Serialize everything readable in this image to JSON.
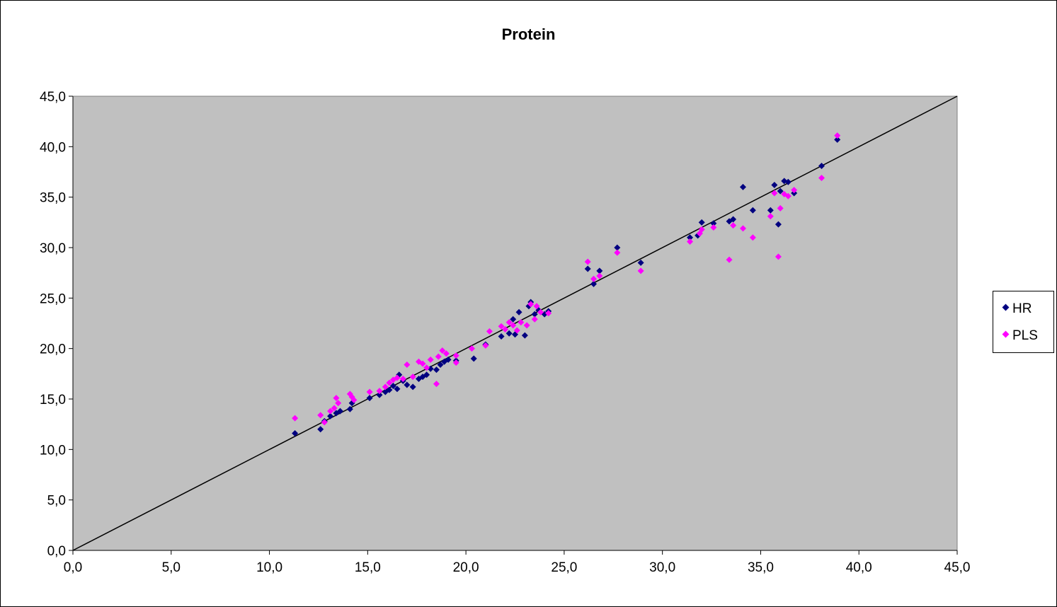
{
  "chart_data": {
    "type": "scatter",
    "title": "Protein",
    "xlabel": "",
    "ylabel": "",
    "xlim": [
      0,
      45
    ],
    "ylim": [
      0,
      45
    ],
    "x_ticks": [
      "0,0",
      "5,0",
      "10,0",
      "15,0",
      "20,0",
      "25,0",
      "30,0",
      "35,0",
      "40,0",
      "45,0"
    ],
    "y_ticks": [
      "0,0",
      "5,0",
      "10,0",
      "15,0",
      "20,0",
      "25,0",
      "30,0",
      "35,0",
      "40,0",
      "45,0"
    ],
    "tick_values": [
      0,
      5,
      10,
      15,
      20,
      25,
      30,
      35,
      40,
      45
    ],
    "plot_background": "#c0c0c0",
    "grid": false,
    "legend_position": "right",
    "reference_line": {
      "from": [
        0,
        0
      ],
      "to": [
        45,
        45
      ],
      "color": "#000000"
    },
    "series": [
      {
        "name": "HR",
        "color": "#000080",
        "marker": "diamond",
        "points": [
          [
            11.3,
            11.6
          ],
          [
            12.6,
            12.0
          ],
          [
            12.8,
            12.8
          ],
          [
            13.1,
            13.3
          ],
          [
            13.4,
            13.6
          ],
          [
            13.6,
            13.8
          ],
          [
            14.1,
            14.0
          ],
          [
            14.2,
            14.6
          ],
          [
            15.1,
            15.1
          ],
          [
            15.6,
            15.4
          ],
          [
            15.9,
            15.7
          ],
          [
            16.1,
            15.9
          ],
          [
            16.3,
            16.3
          ],
          [
            16.5,
            16.0
          ],
          [
            16.6,
            17.4
          ],
          [
            16.8,
            16.8
          ],
          [
            17.0,
            16.4
          ],
          [
            17.3,
            16.2
          ],
          [
            17.6,
            17.0
          ],
          [
            17.8,
            17.2
          ],
          [
            18.0,
            17.4
          ],
          [
            18.2,
            18.0
          ],
          [
            18.5,
            17.9
          ],
          [
            18.7,
            18.4
          ],
          [
            18.9,
            18.7
          ],
          [
            19.1,
            18.9
          ],
          [
            19.5,
            18.8
          ],
          [
            20.4,
            19.0
          ],
          [
            21.0,
            20.4
          ],
          [
            21.8,
            21.2
          ],
          [
            22.2,
            21.5
          ],
          [
            22.4,
            22.9
          ],
          [
            22.5,
            21.4
          ],
          [
            22.7,
            23.6
          ],
          [
            23.0,
            21.3
          ],
          [
            23.2,
            24.2
          ],
          [
            23.3,
            24.6
          ],
          [
            23.5,
            23.4
          ],
          [
            23.7,
            23.8
          ],
          [
            24.0,
            23.4
          ],
          [
            24.2,
            23.7
          ],
          [
            26.2,
            27.9
          ],
          [
            26.5,
            26.4
          ],
          [
            26.8,
            27.7
          ],
          [
            27.7,
            30.0
          ],
          [
            28.9,
            28.5
          ],
          [
            31.4,
            31.0
          ],
          [
            31.8,
            31.2
          ],
          [
            32.0,
            32.5
          ],
          [
            32.6,
            32.4
          ],
          [
            33.4,
            32.6
          ],
          [
            33.6,
            32.8
          ],
          [
            34.1,
            36.0
          ],
          [
            34.6,
            33.7
          ],
          [
            35.5,
            33.7
          ],
          [
            35.7,
            36.2
          ],
          [
            35.9,
            32.3
          ],
          [
            36.0,
            35.6
          ],
          [
            36.2,
            36.6
          ],
          [
            36.4,
            36.5
          ],
          [
            36.7,
            35.4
          ],
          [
            38.1,
            38.1
          ],
          [
            38.9,
            40.7
          ]
        ]
      },
      {
        "name": "PLS",
        "color": "#ff00ff",
        "marker": "diamond",
        "points": [
          [
            11.3,
            13.1
          ],
          [
            12.6,
            13.4
          ],
          [
            12.8,
            12.7
          ],
          [
            13.1,
            13.8
          ],
          [
            13.3,
            14.1
          ],
          [
            13.4,
            15.1
          ],
          [
            13.5,
            14.6
          ],
          [
            14.1,
            15.5
          ],
          [
            14.2,
            15.2
          ],
          [
            14.3,
            14.9
          ],
          [
            15.1,
            15.7
          ],
          [
            15.6,
            15.8
          ],
          [
            15.9,
            16.2
          ],
          [
            16.1,
            16.6
          ],
          [
            16.3,
            16.9
          ],
          [
            16.5,
            17.1
          ],
          [
            16.8,
            17.0
          ],
          [
            17.0,
            18.4
          ],
          [
            17.3,
            17.2
          ],
          [
            17.6,
            18.7
          ],
          [
            17.8,
            18.5
          ],
          [
            18.0,
            18.1
          ],
          [
            18.2,
            18.9
          ],
          [
            18.5,
            16.5
          ],
          [
            18.6,
            19.2
          ],
          [
            18.8,
            19.8
          ],
          [
            19.0,
            19.5
          ],
          [
            19.5,
            18.6
          ],
          [
            19.5,
            19.3
          ],
          [
            20.3,
            20.0
          ],
          [
            21.0,
            20.3
          ],
          [
            21.2,
            21.7
          ],
          [
            21.8,
            22.2
          ],
          [
            22.0,
            21.9
          ],
          [
            22.2,
            22.6
          ],
          [
            22.4,
            22.3
          ],
          [
            22.6,
            21.8
          ],
          [
            22.8,
            22.6
          ],
          [
            23.1,
            22.3
          ],
          [
            23.3,
            24.4
          ],
          [
            23.5,
            22.9
          ],
          [
            23.6,
            24.2
          ],
          [
            23.8,
            23.6
          ],
          [
            24.2,
            23.5
          ],
          [
            26.2,
            28.6
          ],
          [
            26.5,
            26.9
          ],
          [
            26.8,
            27.2
          ],
          [
            27.7,
            29.5
          ],
          [
            28.9,
            27.7
          ],
          [
            31.4,
            30.6
          ],
          [
            31.9,
            31.4
          ],
          [
            32.0,
            31.8
          ],
          [
            32.6,
            32.0
          ],
          [
            33.4,
            28.8
          ],
          [
            33.6,
            32.2
          ],
          [
            34.1,
            31.9
          ],
          [
            34.6,
            31.0
          ],
          [
            35.5,
            33.1
          ],
          [
            35.7,
            35.4
          ],
          [
            35.9,
            29.1
          ],
          [
            36.0,
            33.9
          ],
          [
            36.2,
            35.3
          ],
          [
            36.4,
            35.1
          ],
          [
            36.7,
            35.7
          ],
          [
            38.1,
            36.9
          ],
          [
            38.9,
            41.1
          ]
        ]
      }
    ]
  }
}
